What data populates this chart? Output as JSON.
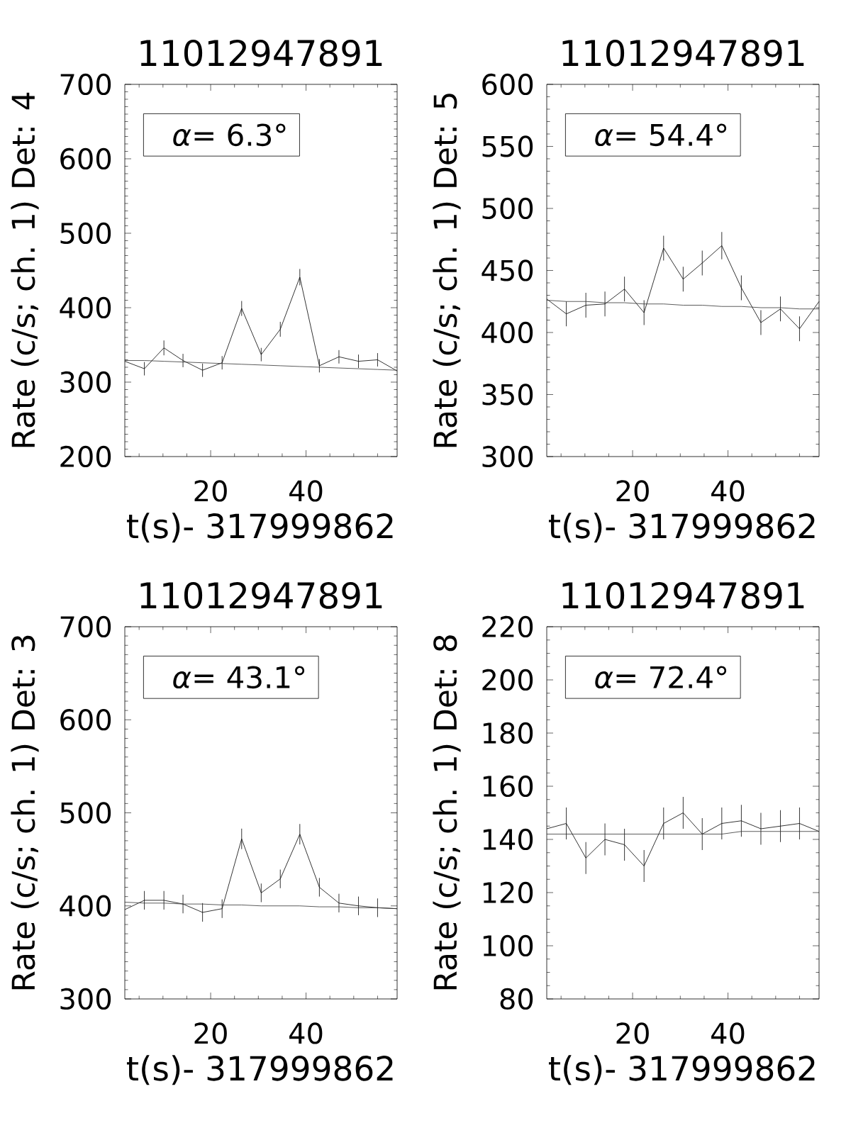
{
  "chart_data": [
    {
      "type": "line",
      "title": "11012947891",
      "xlabel": "t(s)- 317999862",
      "ylabel": "Rate (c/s; ch. 1) Det: 4",
      "annotations": [
        "*α*= 6.3°"
      ],
      "xlim": [
        2.0,
        59.1
      ],
      "xticks": [
        {
          "value": 5,
          "label": null
        },
        {
          "value": 10,
          "label": null
        },
        {
          "value": 15,
          "label": null
        },
        20,
        {
          "value": 25,
          "label": null
        },
        {
          "value": 30,
          "label": null
        },
        {
          "value": 35,
          "label": null
        },
        40,
        {
          "value": 45,
          "label": null
        },
        {
          "value": 50,
          "label": null
        },
        {
          "value": 55,
          "label": null
        }
      ],
      "ylim": [
        200,
        700
      ],
      "yticks": [
        200,
        {
          "value": 210,
          "label": null
        },
        {
          "value": 220,
          "label": null
        },
        {
          "value": 230,
          "label": null
        },
        {
          "value": 240,
          "label": null
        },
        {
          "value": 250,
          "label": null
        },
        {
          "value": 260,
          "label": null
        },
        {
          "value": 270,
          "label": null
        },
        {
          "value": 280,
          "label": null
        },
        {
          "value": 290,
          "label": null
        },
        300,
        {
          "value": 310,
          "label": null
        },
        {
          "value": 320,
          "label": null
        },
        {
          "value": 330,
          "label": null
        },
        {
          "value": 340,
          "label": null
        },
        {
          "value": 350,
          "label": null
        },
        {
          "value": 360,
          "label": null
        },
        {
          "value": 370,
          "label": null
        },
        {
          "value": 380,
          "label": null
        },
        {
          "value": 390,
          "label": null
        },
        400,
        {
          "value": 410,
          "label": null
        },
        {
          "value": 420,
          "label": null
        },
        {
          "value": 430,
          "label": null
        },
        {
          "value": 440,
          "label": null
        },
        {
          "value": 450,
          "label": null
        },
        {
          "value": 460,
          "label": null
        },
        {
          "value": 470,
          "label": null
        },
        {
          "value": 480,
          "label": null
        },
        {
          "value": 490,
          "label": null
        },
        500,
        {
          "value": 510,
          "label": null
        },
        {
          "value": 520,
          "label": null
        },
        {
          "value": 530,
          "label": null
        },
        {
          "value": 540,
          "label": null
        },
        {
          "value": 550,
          "label": null
        },
        {
          "value": 560,
          "label": null
        },
        {
          "value": 570,
          "label": null
        },
        {
          "value": 580,
          "label": null
        },
        {
          "value": 590,
          "label": null
        },
        600,
        {
          "value": 610,
          "label": null
        },
        {
          "value": 620,
          "label": null
        },
        {
          "value": 630,
          "label": null
        },
        {
          "value": 640,
          "label": null
        },
        {
          "value": 650,
          "label": null
        },
        {
          "value": 660,
          "label": null
        },
        {
          "value": 670,
          "label": null
        },
        {
          "value": 680,
          "label": null
        },
        {
          "value": 690,
          "label": null
        },
        700
      ],
      "x": [
        2.0,
        6.1,
        10.2,
        14.2,
        18.3,
        22.4,
        26.5,
        30.6,
        34.6,
        38.7,
        42.8,
        46.9,
        51.0,
        55.0,
        59.1
      ],
      "series": [
        {
          "color": "#000000",
          "values": [
            328,
            318,
            346,
            329,
            316,
            326,
            399,
            337,
            371,
            441,
            322,
            334,
            328,
            330,
            315
          ],
          "errors": [
            null,
            9,
            10,
            9,
            9,
            9,
            10,
            9,
            10,
            11,
            9,
            9,
            9,
            9,
            null
          ]
        },
        {
          "color": "#333333",
          "values": [
            329,
            329,
            328,
            327,
            326,
            325,
            324,
            323,
            322,
            321,
            320,
            319,
            318,
            317,
            316
          ]
        }
      ]
    },
    {
      "type": "line",
      "title": "11012947891",
      "xlabel": "t(s)- 317999862",
      "ylabel": "Rate (c/s; ch. 1) Det: 5",
      "annotations": [
        "*α*= 54.4°"
      ],
      "xlim": [
        2.0,
        59.1
      ],
      "xticks": [
        {
          "value": 5,
          "label": null
        },
        {
          "value": 10,
          "label": null
        },
        {
          "value": 15,
          "label": null
        },
        20,
        {
          "value": 25,
          "label": null
        },
        {
          "value": 30,
          "label": null
        },
        {
          "value": 35,
          "label": null
        },
        40,
        {
          "value": 45,
          "label": null
        },
        {
          "value": 50,
          "label": null
        },
        {
          "value": 55,
          "label": null
        }
      ],
      "ylim": [
        300,
        600
      ],
      "yticks": [
        300,
        {
          "value": 310,
          "label": null
        },
        {
          "value": 320,
          "label": null
        },
        {
          "value": 330,
          "label": null
        },
        {
          "value": 340,
          "label": null
        },
        350,
        {
          "value": 360,
          "label": null
        },
        {
          "value": 370,
          "label": null
        },
        {
          "value": 380,
          "label": null
        },
        {
          "value": 390,
          "label": null
        },
        400,
        {
          "value": 410,
          "label": null
        },
        {
          "value": 420,
          "label": null
        },
        {
          "value": 430,
          "label": null
        },
        {
          "value": 440,
          "label": null
        },
        450,
        {
          "value": 460,
          "label": null
        },
        {
          "value": 470,
          "label": null
        },
        {
          "value": 480,
          "label": null
        },
        {
          "value": 490,
          "label": null
        },
        500,
        {
          "value": 510,
          "label": null
        },
        {
          "value": 520,
          "label": null
        },
        {
          "value": 530,
          "label": null
        },
        {
          "value": 540,
          "label": null
        },
        550,
        {
          "value": 560,
          "label": null
        },
        {
          "value": 570,
          "label": null
        },
        {
          "value": 580,
          "label": null
        },
        {
          "value": 590,
          "label": null
        },
        600
      ],
      "x": [
        2.0,
        6.1,
        10.2,
        14.2,
        18.3,
        22.4,
        26.5,
        30.6,
        34.6,
        38.7,
        42.8,
        46.9,
        51.0,
        55.0,
        59.1
      ],
      "series": [
        {
          "color": "#000000",
          "values": [
            427,
            415,
            422,
            423,
            435,
            416,
            468,
            443,
            456,
            470,
            436,
            408,
            419,
            403,
            425
          ],
          "errors": [
            null,
            10,
            10,
            10,
            10,
            10,
            10,
            10,
            10,
            11,
            10,
            10,
            10,
            10,
            null
          ]
        },
        {
          "color": "#333333",
          "values": [
            426,
            425,
            425,
            424,
            424,
            423,
            423,
            422,
            422,
            421,
            421,
            420,
            420,
            419,
            419
          ]
        }
      ]
    },
    {
      "type": "line",
      "title": "11012947891",
      "xlabel": "t(s)- 317999862",
      "ylabel": "Rate (c/s; ch. 1) Det: 3",
      "annotations": [
        "*α*= 43.1°"
      ],
      "xlim": [
        2.0,
        59.1
      ],
      "xticks": [
        {
          "value": 5,
          "label": null
        },
        {
          "value": 10,
          "label": null
        },
        {
          "value": 15,
          "label": null
        },
        20,
        {
          "value": 25,
          "label": null
        },
        {
          "value": 30,
          "label": null
        },
        {
          "value": 35,
          "label": null
        },
        40,
        {
          "value": 45,
          "label": null
        },
        {
          "value": 50,
          "label": null
        },
        {
          "value": 55,
          "label": null
        }
      ],
      "ylim": [
        300,
        700
      ],
      "yticks": [
        300,
        {
          "value": 310,
          "label": null
        },
        {
          "value": 320,
          "label": null
        },
        {
          "value": 330,
          "label": null
        },
        {
          "value": 340,
          "label": null
        },
        {
          "value": 350,
          "label": null
        },
        {
          "value": 360,
          "label": null
        },
        {
          "value": 370,
          "label": null
        },
        {
          "value": 380,
          "label": null
        },
        {
          "value": 390,
          "label": null
        },
        400,
        {
          "value": 410,
          "label": null
        },
        {
          "value": 420,
          "label": null
        },
        {
          "value": 430,
          "label": null
        },
        {
          "value": 440,
          "label": null
        },
        {
          "value": 450,
          "label": null
        },
        {
          "value": 460,
          "label": null
        },
        {
          "value": 470,
          "label": null
        },
        {
          "value": 480,
          "label": null
        },
        {
          "value": 490,
          "label": null
        },
        500,
        {
          "value": 510,
          "label": null
        },
        {
          "value": 520,
          "label": null
        },
        {
          "value": 530,
          "label": null
        },
        {
          "value": 540,
          "label": null
        },
        {
          "value": 550,
          "label": null
        },
        {
          "value": 560,
          "label": null
        },
        {
          "value": 570,
          "label": null
        },
        {
          "value": 580,
          "label": null
        },
        {
          "value": 590,
          "label": null
        },
        600,
        {
          "value": 610,
          "label": null
        },
        {
          "value": 620,
          "label": null
        },
        {
          "value": 630,
          "label": null
        },
        {
          "value": 640,
          "label": null
        },
        {
          "value": 650,
          "label": null
        },
        {
          "value": 660,
          "label": null
        },
        {
          "value": 670,
          "label": null
        },
        {
          "value": 680,
          "label": null
        },
        {
          "value": 690,
          "label": null
        },
        700
      ],
      "x": [
        2.0,
        6.1,
        10.2,
        14.2,
        18.3,
        22.4,
        26.5,
        30.6,
        34.6,
        38.7,
        42.8,
        46.9,
        51.0,
        55.0,
        59.1
      ],
      "series": [
        {
          "color": "#000000",
          "values": [
            396,
            406,
            406,
            402,
            393,
            397,
            472,
            414,
            429,
            477,
            420,
            403,
            400,
            398,
            397
          ],
          "errors": [
            null,
            10,
            10,
            10,
            10,
            10,
            11,
            10,
            10,
            11,
            10,
            10,
            10,
            10,
            null
          ]
        },
        {
          "color": "#333333",
          "values": [
            404,
            403,
            403,
            402,
            402,
            401,
            401,
            400,
            400,
            400,
            399,
            399,
            398,
            398,
            397
          ]
        }
      ]
    },
    {
      "type": "line",
      "title": "11012947891",
      "xlabel": "t(s)- 317999862",
      "ylabel": "Rate (c/s; ch. 1) Det: 8",
      "annotations": [
        "*α*= 72.4°"
      ],
      "xlim": [
        2.0,
        59.1
      ],
      "xticks": [
        {
          "value": 5,
          "label": null
        },
        {
          "value": 10,
          "label": null
        },
        {
          "value": 15,
          "label": null
        },
        20,
        {
          "value": 25,
          "label": null
        },
        {
          "value": 30,
          "label": null
        },
        {
          "value": 35,
          "label": null
        },
        40,
        {
          "value": 45,
          "label": null
        },
        {
          "value": 50,
          "label": null
        },
        {
          "value": 55,
          "label": null
        }
      ],
      "ylim": [
        80,
        220
      ],
      "yticks": [
        80,
        {
          "value": 85,
          "label": null
        },
        {
          "value": 90,
          "label": null
        },
        {
          "value": 95,
          "label": null
        },
        100,
        {
          "value": 105,
          "label": null
        },
        {
          "value": 110,
          "label": null
        },
        {
          "value": 115,
          "label": null
        },
        120,
        {
          "value": 125,
          "label": null
        },
        {
          "value": 130,
          "label": null
        },
        {
          "value": 135,
          "label": null
        },
        140,
        {
          "value": 145,
          "label": null
        },
        {
          "value": 150,
          "label": null
        },
        {
          "value": 155,
          "label": null
        },
        160,
        {
          "value": 165,
          "label": null
        },
        {
          "value": 170,
          "label": null
        },
        {
          "value": 175,
          "label": null
        },
        180,
        {
          "value": 185,
          "label": null
        },
        {
          "value": 190,
          "label": null
        },
        {
          "value": 195,
          "label": null
        },
        200,
        {
          "value": 205,
          "label": null
        },
        {
          "value": 210,
          "label": null
        },
        {
          "value": 215,
          "label": null
        },
        220
      ],
      "x": [
        2.0,
        6.1,
        10.2,
        14.2,
        18.3,
        22.4,
        26.5,
        30.6,
        34.6,
        38.7,
        42.8,
        46.9,
        51.0,
        55.0,
        59.1
      ],
      "series": [
        {
          "color": "#000000",
          "values": [
            144,
            146,
            133,
            140,
            138,
            130,
            146,
            150,
            142,
            146,
            147,
            144,
            145,
            146,
            143
          ],
          "errors": [
            null,
            6,
            6,
            6,
            6,
            6,
            6,
            6,
            6,
            6,
            6,
            6,
            6,
            6,
            null
          ]
        },
        {
          "color": "#333333",
          "values": [
            142,
            142,
            142,
            142,
            142,
            142,
            142,
            142,
            142,
            142,
            143,
            143,
            143,
            143,
            143
          ]
        }
      ]
    }
  ]
}
